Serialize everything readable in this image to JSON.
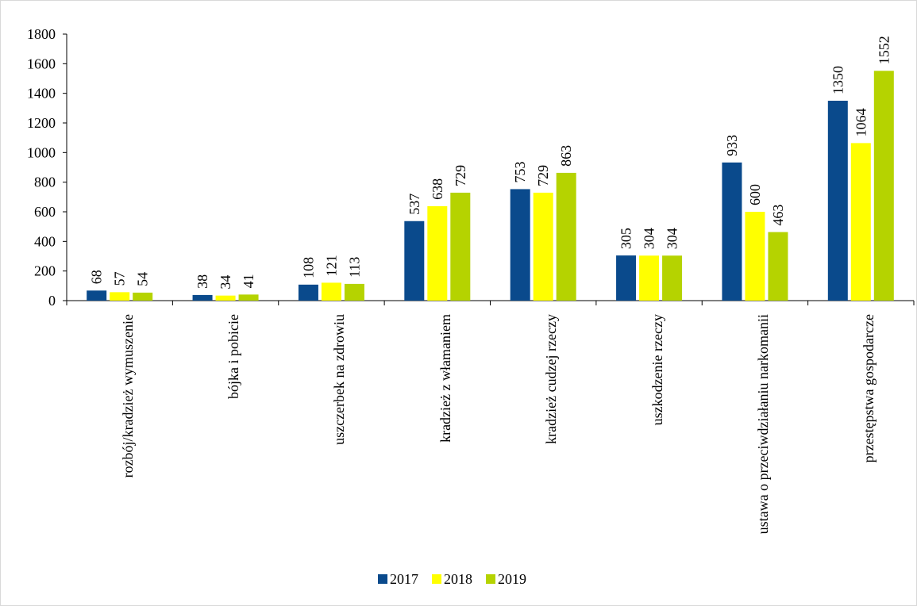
{
  "chart_data": {
    "type": "bar",
    "categories": [
      "rozbój/kradzież wymuszenie",
      "bójka i pobicie",
      "uszczerbek na zdrowiu",
      "kradzież z włamaniem",
      "kradzież cudzej rzeczy",
      "uszkodzenie rzeczy",
      "ustawa o przeciwdziałaniu narkomanii",
      "przestępstwa gospodarcze"
    ],
    "series": [
      {
        "name": "2017",
        "color": "#0a4a8c",
        "values": [
          68,
          38,
          108,
          537,
          753,
          305,
          933,
          1350
        ]
      },
      {
        "name": "2018",
        "color": "#ffff00",
        "values": [
          57,
          34,
          121,
          638,
          729,
          304,
          600,
          1064
        ]
      },
      {
        "name": "2019",
        "color": "#b5d300",
        "values": [
          54,
          41,
          113,
          729,
          863,
          304,
          463,
          1552
        ]
      }
    ],
    "ylim": [
      0,
      1800
    ],
    "yticks": [
      0,
      200,
      400,
      600,
      800,
      1000,
      1200,
      1400,
      1600,
      1800
    ],
    "legend": "bottom"
  }
}
